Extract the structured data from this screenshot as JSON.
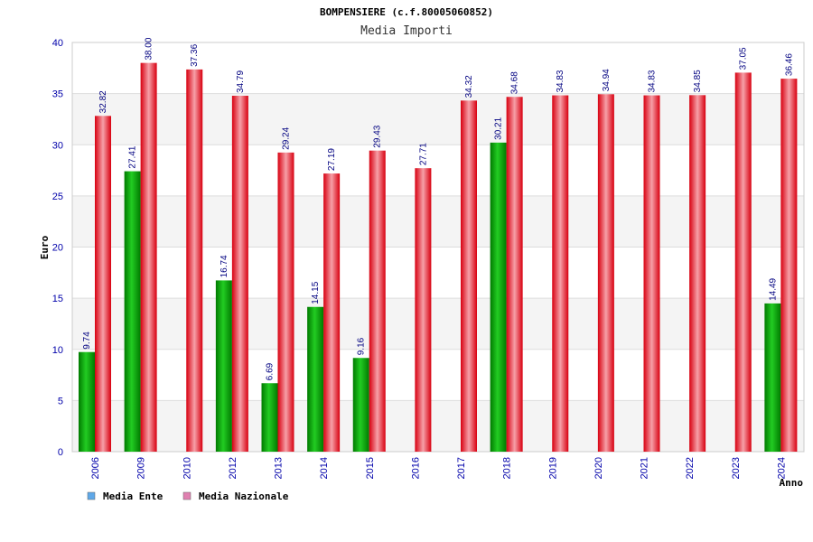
{
  "chart_data": {
    "type": "bar",
    "title": "BOMPENSIERE (c.f.80005060852)",
    "subtitle": "Media Importi",
    "xlabel": "Anno",
    "ylabel": "Euro",
    "ylim": [
      0,
      40
    ],
    "yticks": [
      0,
      5,
      10,
      15,
      20,
      25,
      30,
      35,
      40
    ],
    "grid": true,
    "legend_position": "bottom-left",
    "categories": [
      "2006",
      "2009",
      "2010",
      "2012",
      "2013",
      "2014",
      "2015",
      "2016",
      "2017",
      "2018",
      "2019",
      "2020",
      "2021",
      "2022",
      "2023",
      "2024"
    ],
    "series": [
      {
        "name": "Media Ente",
        "legend_color": "#5fa8e8",
        "bar_color": "#0a9a0a",
        "values": [
          9.74,
          27.41,
          null,
          16.74,
          6.69,
          14.15,
          9.16,
          null,
          null,
          30.21,
          null,
          null,
          null,
          null,
          null,
          14.49
        ],
        "labels": [
          "9.74",
          "27.41",
          null,
          "16.74",
          "6.69",
          "14.15",
          "9.16",
          null,
          null,
          "30.21",
          null,
          null,
          null,
          null,
          null,
          "14.49"
        ]
      },
      {
        "name": "Media Nazionale",
        "legend_color": "#e080b0",
        "bar_color": "#e01020",
        "values": [
          32.82,
          38.0,
          37.36,
          34.79,
          29.24,
          27.19,
          29.43,
          27.71,
          34.32,
          34.68,
          34.83,
          34.94,
          34.83,
          34.85,
          37.05,
          36.46
        ],
        "labels": [
          "32.82",
          "38.00",
          "37.36",
          "34.79",
          "29.24",
          "27.19",
          "29.43",
          "27.71",
          "34.32",
          "34.68",
          "34.83",
          "34.94",
          "34.83",
          "34.85",
          "37.05",
          "36.46"
        ]
      }
    ]
  }
}
